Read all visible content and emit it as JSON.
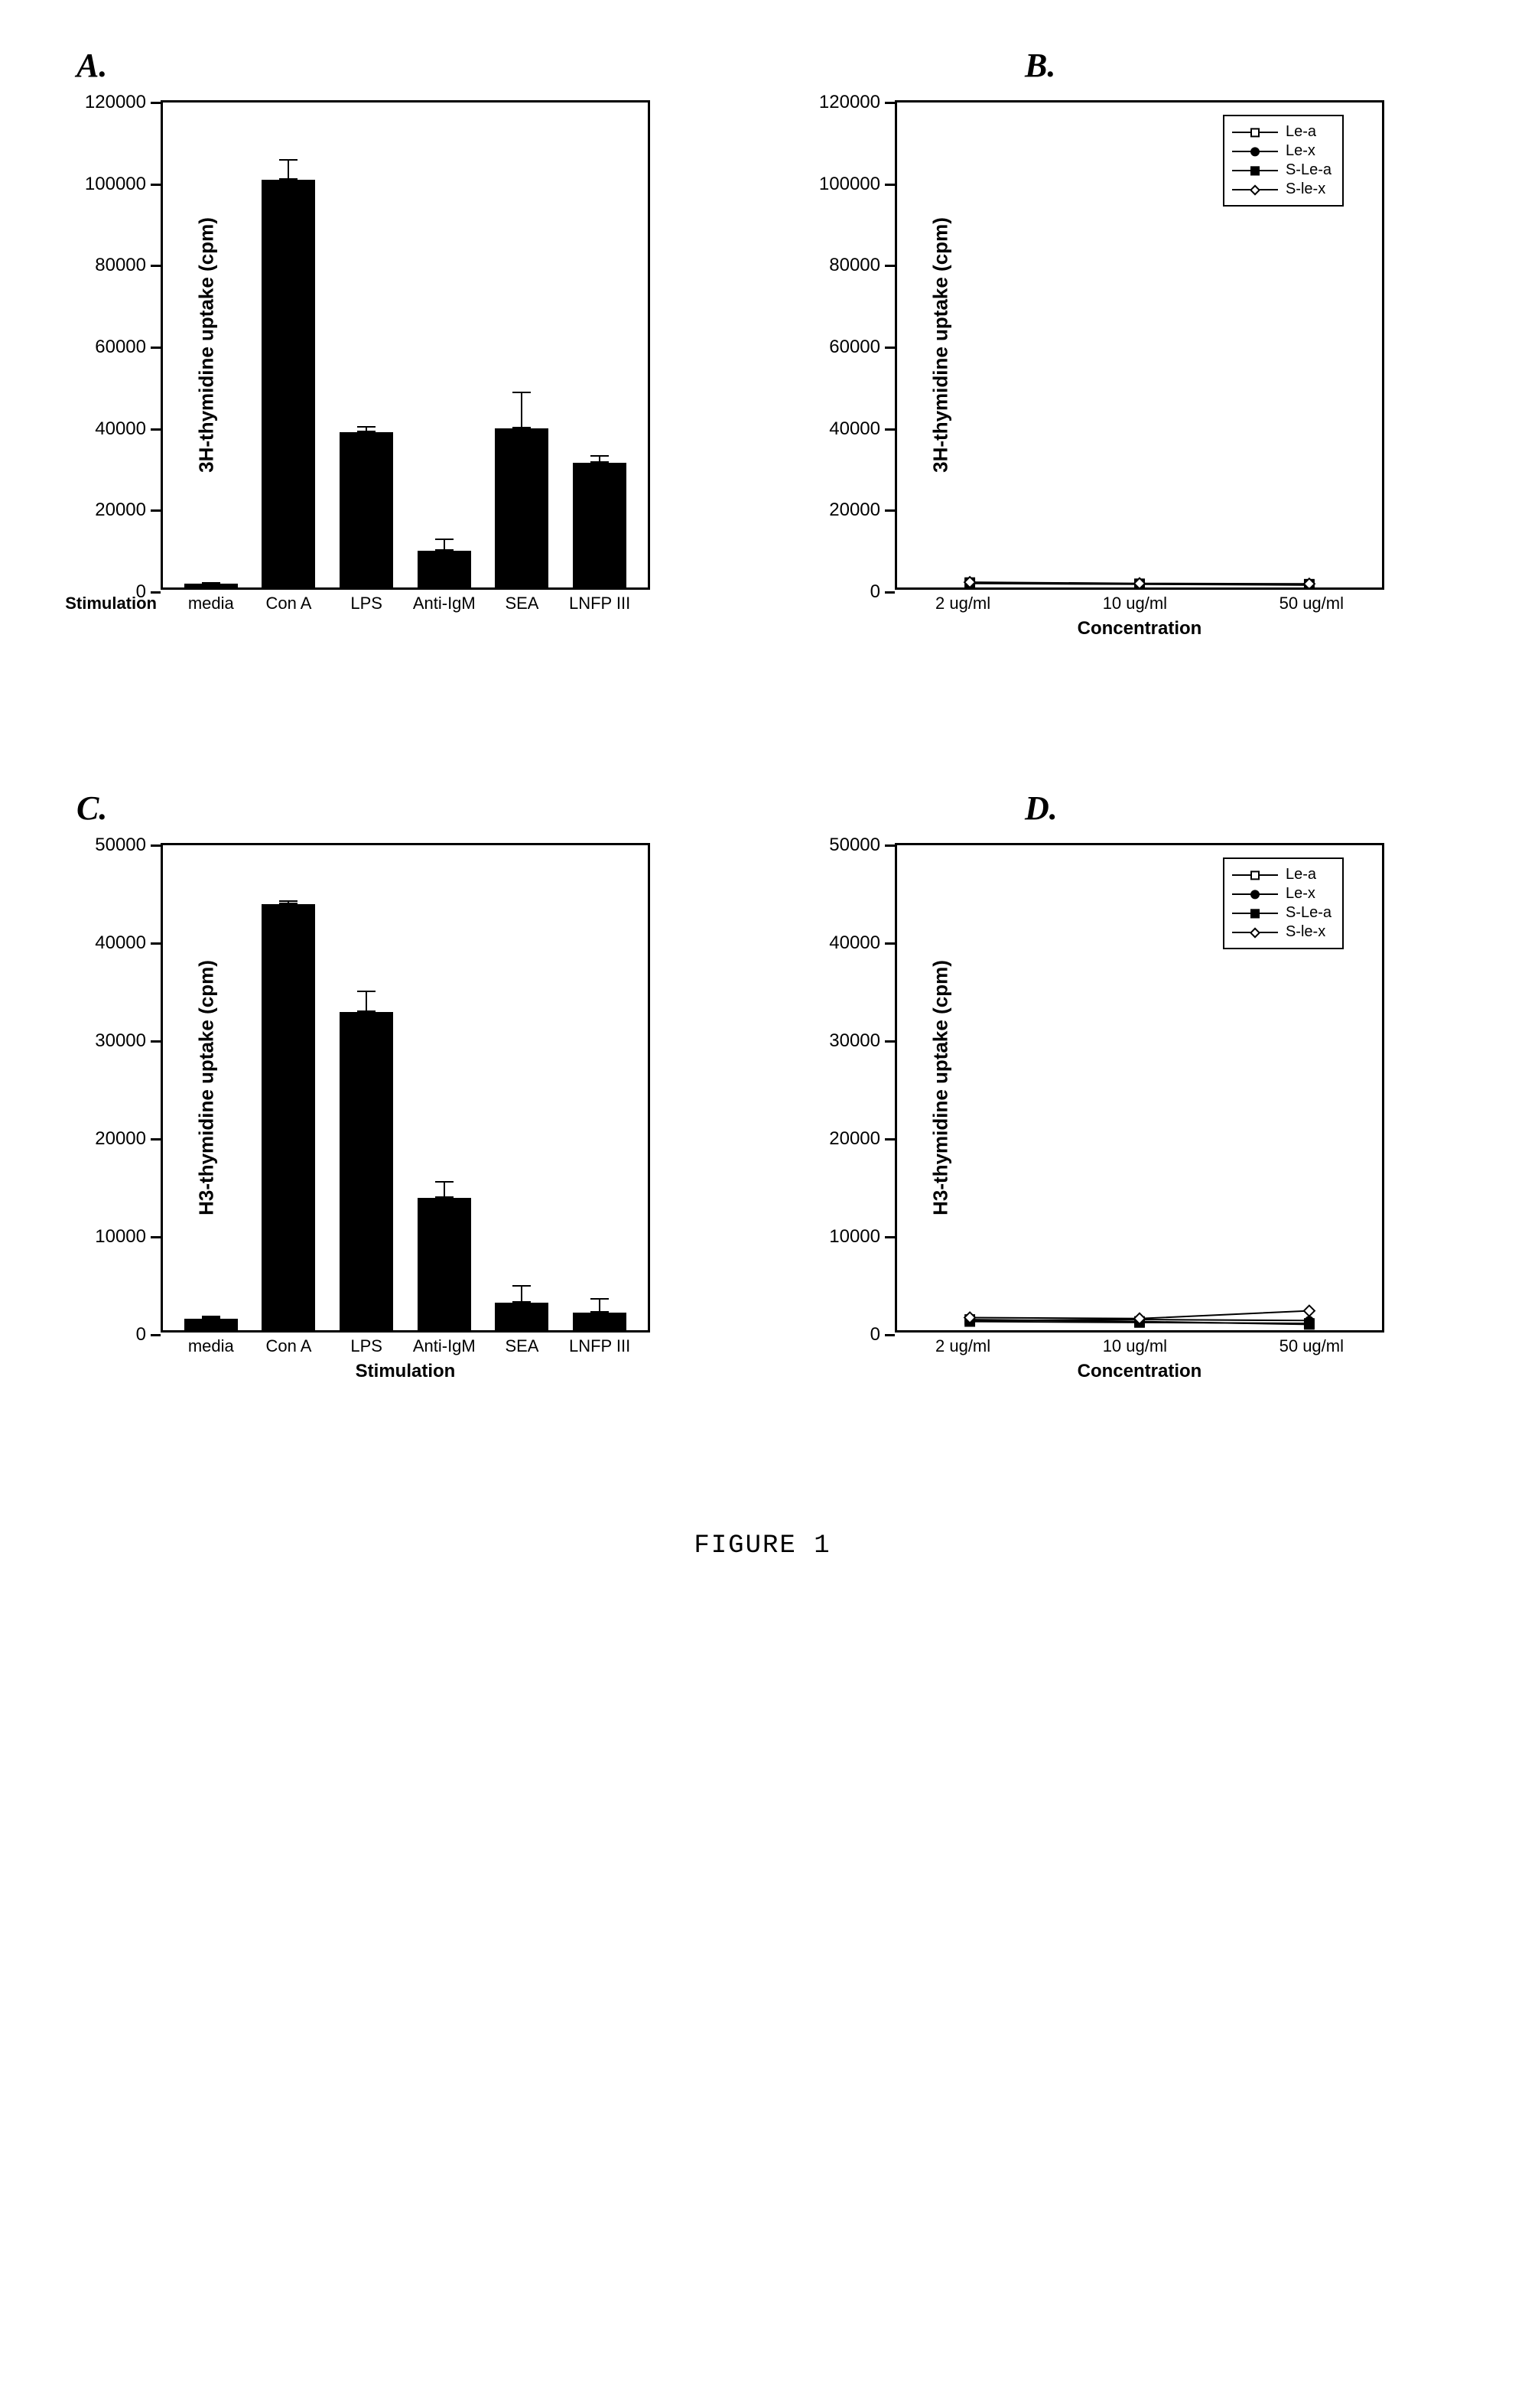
{
  "figure_caption": "FIGURE 1",
  "colors": {
    "bar_fill": "#000000",
    "axis": "#000000",
    "bg": "#ffffff",
    "line": "#000000"
  },
  "panelA": {
    "label": "A.",
    "type": "bar",
    "ylabel": "3H-thymidine uptake (cpm)",
    "ylim": [
      0,
      120000
    ],
    "ytick_step": 20000,
    "yticks": [
      0,
      20000,
      40000,
      60000,
      80000,
      100000,
      120000
    ],
    "xlabel": "Stimulation",
    "xlabel_position": "left",
    "categories": [
      "media",
      "Con A",
      "LPS",
      "Anti-IgM",
      "SEA",
      "LNFP III"
    ],
    "values": [
      1000,
      100000,
      38000,
      9000,
      39000,
      30500
    ],
    "errors": [
      300,
      5000,
      1500,
      3000,
      9000,
      2000
    ]
  },
  "panelB": {
    "label": "B.",
    "type": "line",
    "ylabel": "3H-thymidine uptake (cpm)",
    "ylim": [
      0,
      120000
    ],
    "ytick_step": 20000,
    "yticks": [
      0,
      20000,
      40000,
      60000,
      80000,
      100000,
      120000
    ],
    "xlabel": "Concentration",
    "xticks": [
      "2  ug/ml",
      "10  ug/ml",
      "50  ug/ml"
    ],
    "x_positions": [
      0.15,
      0.5,
      0.85
    ],
    "legend": [
      {
        "name": "Le-a",
        "marker": "square-open"
      },
      {
        "name": "Le-x",
        "marker": "circle-filled"
      },
      {
        "name": "S-Le-a",
        "marker": "square-filled"
      },
      {
        "name": "S-le-x",
        "marker": "diamond-open"
      }
    ],
    "series": {
      "Le-a": [
        1200,
        900,
        800
      ],
      "Le-x": [
        1100,
        850,
        700
      ],
      "S-Le-a": [
        1000,
        800,
        600
      ],
      "S-le-x": [
        1300,
        1000,
        900
      ]
    }
  },
  "panelC": {
    "label": "C.",
    "type": "bar",
    "ylabel": "H3-thymidine uptake (cpm)",
    "ylim": [
      0,
      50000
    ],
    "ytick_step": 10000,
    "yticks": [
      0,
      10000,
      20000,
      30000,
      40000,
      50000
    ],
    "xlabel": "Stimulation",
    "xlabel_position": "below",
    "categories": [
      "media",
      "Con A",
      "LPS",
      "Anti-IgM",
      "SEA",
      "LNFP III"
    ],
    "values": [
      1200,
      43500,
      32500,
      13500,
      2800,
      1800
    ],
    "errors": [
      300,
      400,
      2200,
      1700,
      1800,
      1500
    ]
  },
  "panelD": {
    "label": "D.",
    "type": "line",
    "ylabel": "H3-thymidine uptake (cpm)",
    "ylim": [
      0,
      50000
    ],
    "ytick_step": 10000,
    "yticks": [
      0,
      10000,
      20000,
      30000,
      40000,
      50000
    ],
    "xlabel": "Concentration",
    "xticks": [
      "2  ug/ml",
      "10  ug/ml",
      "50  ug/ml"
    ],
    "x_positions": [
      0.15,
      0.5,
      0.85
    ],
    "legend": [
      {
        "name": "Le-a",
        "marker": "square-open"
      },
      {
        "name": "Le-x",
        "marker": "circle-filled"
      },
      {
        "name": "S-Le-a",
        "marker": "square-filled"
      },
      {
        "name": "S-le-x",
        "marker": "diamond-open"
      }
    ],
    "series": {
      "Le-a": [
        1100,
        900,
        600
      ],
      "Le-x": [
        1000,
        1100,
        1000
      ],
      "S-Le-a": [
        900,
        800,
        700
      ],
      "S-le-x": [
        1300,
        1200,
        2000
      ]
    }
  }
}
